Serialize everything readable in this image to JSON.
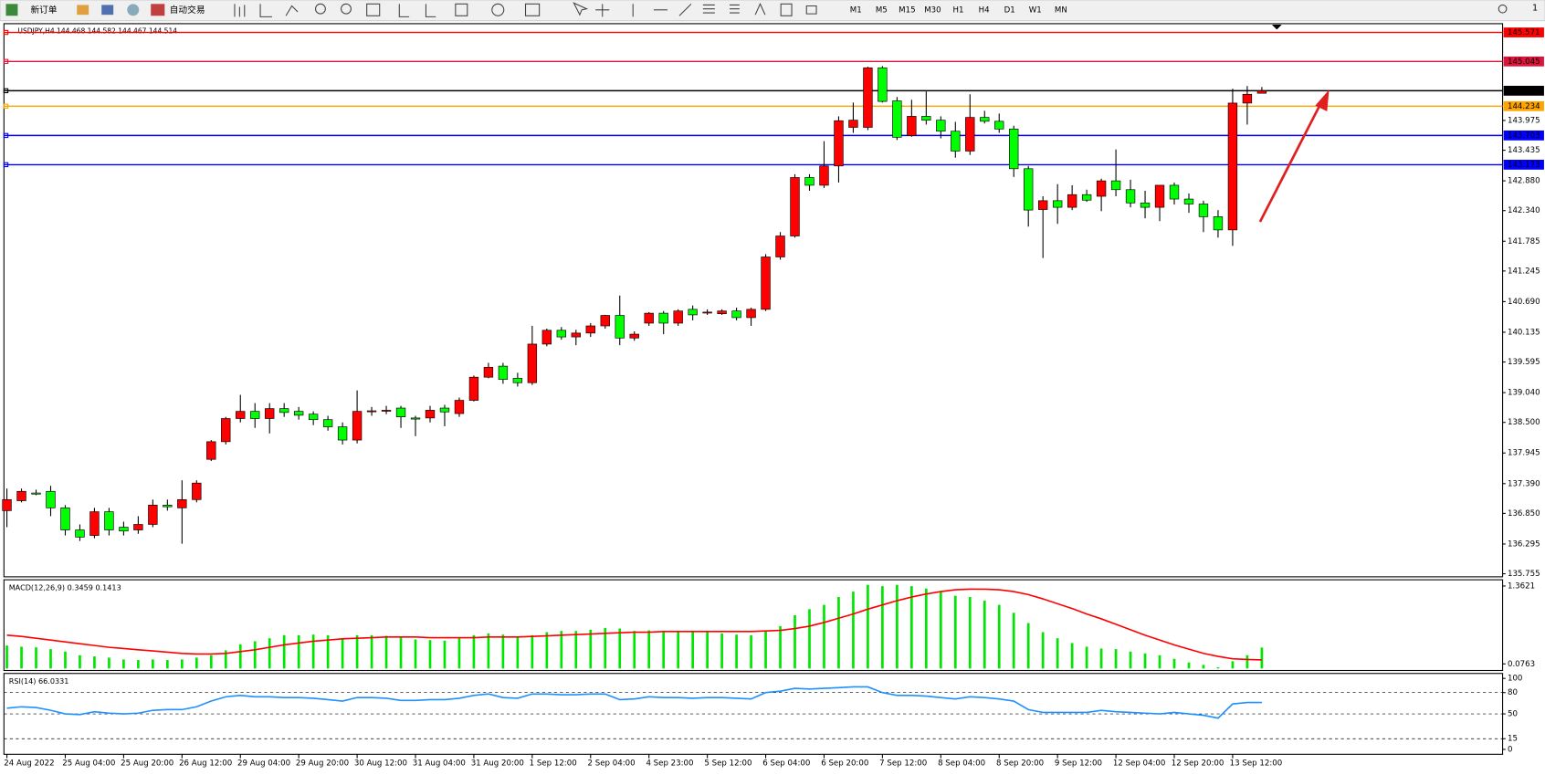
{
  "toolbar": {
    "new_order": "新订单",
    "auto_trading": "自动交易",
    "timeframes": [
      "M1",
      "M5",
      "M15",
      "M30",
      "H1",
      "H4",
      "D1",
      "W1",
      "MN"
    ],
    "notification_count": "1"
  },
  "chart_data": [
    {
      "type": "candlestick",
      "title": "USDJPY,H4  144.468 144.582 144.467 144.514",
      "up_color": "#ff0000",
      "down_color": "#00ff00",
      "categories": [
        "24 Aug 2022",
        null,
        null,
        null,
        "25 Aug 04:00",
        null,
        null,
        null,
        "25 Aug 20:00",
        null,
        null,
        null,
        "26 Aug 12:00",
        null,
        null,
        null,
        "29 Aug 04:00",
        null,
        null,
        null,
        "29 Aug 20:00",
        null,
        null,
        null,
        "30 Aug 12:00",
        null,
        null,
        null,
        "31 Aug 04:00",
        null,
        null,
        null,
        "31 Aug 20:00",
        null,
        null,
        null,
        "1 Sep 12:00",
        null,
        null,
        null,
        "2 Sep 04:00",
        null,
        null,
        null,
        "4 Sep 23:00",
        null,
        null,
        null,
        "5 Sep 12:00",
        null,
        null,
        null,
        "6 Sep 04:00",
        null,
        null,
        null,
        "6 Sep 20:00",
        null,
        null,
        null,
        "7 Sep 12:00",
        null,
        null,
        null,
        "8 Sep 04:00",
        null,
        null,
        null,
        "8 Sep 20:00",
        null,
        null,
        null,
        "9 Sep 12:00",
        null,
        null,
        null,
        "12 Sep 04:00",
        null,
        null,
        null,
        "12 Sep 20:00",
        null,
        null,
        null,
        "13 Sep 12:00",
        null,
        null
      ],
      "open": [
        136.9,
        137.08,
        137.22,
        137.25,
        136.95,
        136.55,
        136.45,
        136.88,
        136.6,
        136.55,
        136.65,
        137.0,
        136.95,
        137.1,
        137.83,
        138.15,
        138.57,
        138.7,
        138.57,
        138.75,
        138.7,
        138.65,
        138.55,
        138.42,
        138.18,
        138.7,
        138.71,
        138.76,
        138.58,
        138.58,
        138.76,
        138.66,
        138.9,
        139.32,
        139.52,
        139.3,
        139.22,
        139.92,
        140.17,
        140.05,
        140.12,
        140.25,
        140.44,
        140.03,
        140.3,
        140.48,
        140.3,
        140.55,
        140.5,
        140.47,
        140.52,
        140.4,
        140.55,
        141.5,
        141.88,
        142.94,
        142.8,
        143.15,
        143.85,
        143.85,
        144.93,
        144.33,
        143.7,
        144.05,
        143.98,
        143.78,
        143.42,
        144.03,
        143.96,
        143.82,
        143.1,
        142.36,
        142.52,
        142.4,
        142.63,
        142.6,
        142.88,
        142.72,
        142.48,
        142.4,
        142.8,
        142.55,
        142.46,
        142.23,
        141.99,
        144.29,
        144.468
      ],
      "high": [
        137.3,
        137.3,
        137.28,
        137.35,
        137.0,
        136.65,
        136.95,
        136.95,
        136.7,
        136.8,
        137.1,
        137.1,
        137.45,
        137.45,
        138.18,
        138.6,
        139.0,
        138.85,
        138.85,
        138.85,
        138.78,
        138.7,
        138.62,
        138.5,
        139.08,
        138.78,
        138.8,
        138.8,
        138.62,
        138.8,
        138.82,
        138.95,
        139.35,
        139.58,
        139.58,
        139.4,
        140.25,
        140.2,
        140.23,
        140.18,
        140.3,
        140.45,
        140.8,
        140.15,
        140.5,
        140.52,
        140.55,
        140.62,
        140.55,
        140.55,
        140.58,
        140.58,
        141.55,
        141.95,
        143.0,
        143.0,
        143.6,
        144.05,
        144.3,
        144.95,
        144.96,
        144.4,
        144.35,
        144.5,
        144.05,
        143.95,
        144.45,
        144.15,
        144.1,
        143.88,
        143.15,
        142.6,
        142.82,
        142.8,
        142.72,
        142.92,
        143.45,
        142.9,
        142.7,
        142.8,
        142.85,
        142.65,
        142.52,
        142.35,
        144.55,
        144.6,
        144.582
      ],
      "low": [
        136.6,
        137.05,
        137.18,
        136.8,
        136.45,
        136.35,
        136.4,
        136.45,
        136.45,
        136.48,
        136.6,
        136.9,
        136.3,
        137.05,
        137.8,
        138.1,
        138.5,
        138.4,
        138.3,
        138.6,
        138.55,
        138.45,
        138.35,
        138.1,
        138.12,
        138.62,
        138.65,
        138.4,
        138.25,
        138.5,
        138.43,
        138.6,
        138.88,
        139.3,
        139.2,
        139.15,
        139.18,
        139.88,
        140.0,
        139.9,
        140.05,
        140.2,
        139.9,
        139.98,
        140.25,
        140.1,
        140.25,
        140.35,
        140.45,
        140.45,
        140.35,
        140.25,
        140.52,
        141.45,
        141.85,
        142.7,
        142.75,
        142.85,
        143.75,
        143.8,
        144.3,
        143.62,
        143.68,
        143.9,
        143.65,
        143.3,
        143.35,
        143.92,
        143.75,
        142.95,
        142.05,
        141.48,
        142.1,
        142.35,
        142.5,
        142.33,
        142.6,
        142.4,
        142.2,
        142.15,
        142.45,
        142.3,
        141.95,
        141.85,
        141.7,
        143.9,
        144.467
      ],
      "close": [
        137.1,
        137.25,
        137.2,
        136.95,
        136.55,
        136.42,
        136.88,
        136.55,
        136.53,
        136.65,
        137.0,
        136.97,
        137.1,
        137.4,
        138.15,
        138.57,
        138.7,
        138.57,
        138.75,
        138.68,
        138.63,
        138.55,
        138.42,
        138.18,
        138.7,
        138.71,
        138.72,
        138.6,
        138.56,
        138.72,
        138.69,
        138.9,
        139.32,
        139.5,
        139.28,
        139.22,
        139.92,
        140.17,
        140.05,
        140.12,
        140.25,
        140.44,
        140.03,
        140.1,
        140.48,
        140.3,
        140.52,
        140.45,
        140.5,
        140.52,
        140.4,
        140.55,
        141.5,
        141.88,
        142.94,
        142.8,
        143.15,
        143.97,
        143.98,
        144.93,
        144.32,
        143.67,
        144.05,
        143.98,
        143.78,
        143.42,
        144.03,
        143.96,
        143.82,
        143.1,
        142.35,
        142.52,
        142.4,
        142.63,
        142.53,
        142.88,
        142.72,
        142.48,
        142.4,
        142.8,
        142.55,
        142.46,
        142.23,
        141.99,
        144.29,
        144.45,
        144.514
      ],
      "ylim": [
        135.7,
        145.73
      ],
      "yticks": [
        143.975,
        143.435,
        {
          "value": 142.88,
          "label": "142.880"
        },
        {
          "value": 142.34,
          "label": "142.340"
        },
        141.785,
        141.245,
        {
          "value": 140.69,
          "label": "140.690"
        },
        140.135,
        139.595,
        {
          "value": 139.04,
          "label": "139.040"
        },
        {
          "value": 138.5,
          "label": "138.500"
        },
        137.945,
        {
          "value": 137.39,
          "label": "137.390"
        },
        {
          "value": 136.85,
          "label": "136.850"
        },
        136.295,
        135.755
      ],
      "levels": [
        {
          "value": 145.571,
          "color": "#ff0000"
        },
        {
          "value": 145.045,
          "color": "#dc143c"
        },
        {
          "value": 144.514,
          "color": "#000000"
        },
        {
          "value": 144.234,
          "color": "#ffa500"
        },
        {
          "value": 143.703,
          "color": "#0000ff"
        },
        {
          "value": 143.173,
          "color": "#0000ff"
        }
      ]
    },
    {
      "type": "macd",
      "title": "MACD(12,26,9) 0.3459 0.1413",
      "ylim": [
        0,
        1.4
      ],
      "yticks": [
        1.3621,
        0.0763
      ],
      "series": [
        {
          "style": "bar",
          "color": "#00e600",
          "values": [
            0.38,
            0.36,
            0.35,
            0.32,
            0.28,
            0.22,
            0.2,
            0.18,
            0.15,
            0.14,
            0.15,
            0.14,
            0.15,
            0.18,
            0.22,
            0.3,
            0.4,
            0.45,
            0.5,
            0.55,
            0.55,
            0.56,
            0.55,
            0.5,
            0.55,
            0.55,
            0.54,
            0.52,
            0.48,
            0.47,
            0.46,
            0.5,
            0.55,
            0.58,
            0.56,
            0.52,
            0.55,
            0.6,
            0.62,
            0.62,
            0.64,
            0.67,
            0.66,
            0.62,
            0.63,
            0.62,
            0.62,
            0.62,
            0.6,
            0.58,
            0.56,
            0.55,
            0.62,
            0.7,
            0.88,
            0.98,
            1.05,
            1.18,
            1.27,
            1.38,
            1.36,
            1.38,
            1.36,
            1.32,
            1.28,
            1.2,
            1.18,
            1.12,
            1.05,
            0.92,
            0.75,
            0.6,
            0.5,
            0.42,
            0.36,
            0.33,
            0.32,
            0.28,
            0.25,
            0.22,
            0.16,
            0.1,
            0.06,
            0.02,
            0.12,
            0.22,
            0.3459
          ]
        },
        {
          "style": "line",
          "color": "#ff0000",
          "values": [
            0.55,
            0.53,
            0.5,
            0.47,
            0.44,
            0.41,
            0.38,
            0.35,
            0.33,
            0.31,
            0.29,
            0.27,
            0.25,
            0.24,
            0.24,
            0.25,
            0.28,
            0.31,
            0.35,
            0.39,
            0.42,
            0.45,
            0.47,
            0.49,
            0.5,
            0.51,
            0.52,
            0.52,
            0.52,
            0.51,
            0.51,
            0.51,
            0.51,
            0.52,
            0.52,
            0.52,
            0.53,
            0.54,
            0.55,
            0.56,
            0.57,
            0.58,
            0.59,
            0.6,
            0.6,
            0.61,
            0.61,
            0.61,
            0.61,
            0.61,
            0.61,
            0.61,
            0.62,
            0.63,
            0.66,
            0.7,
            0.76,
            0.83,
            0.9,
            0.98,
            1.05,
            1.12,
            1.18,
            1.23,
            1.27,
            1.3,
            1.31,
            1.31,
            1.3,
            1.27,
            1.22,
            1.15,
            1.07,
            0.99,
            0.9,
            0.82,
            0.73,
            0.64,
            0.55,
            0.47,
            0.39,
            0.32,
            0.25,
            0.2,
            0.16,
            0.15,
            0.1413
          ]
        }
      ]
    },
    {
      "type": "rsi",
      "title": "RSI(14) 66.0331",
      "ylim": [
        0,
        100
      ],
      "yticks": [
        100,
        80,
        50,
        15,
        0
      ],
      "series": [
        {
          "style": "line",
          "color": "#1e90ff",
          "values": [
            58,
            60,
            59,
            55,
            50,
            49,
            53,
            51,
            50,
            51,
            55,
            56,
            56,
            60,
            68,
            74,
            76,
            74,
            74,
            73,
            73,
            72,
            70,
            68,
            73,
            73,
            72,
            69,
            69,
            70,
            70,
            72,
            76,
            78,
            73,
            72,
            78,
            78,
            77,
            77,
            78,
            78,
            70,
            71,
            74,
            73,
            73,
            72,
            73,
            73,
            72,
            71,
            80,
            82,
            86,
            85,
            86,
            87,
            88,
            88,
            80,
            76,
            76,
            75,
            73,
            71,
            74,
            73,
            71,
            68,
            56,
            52,
            52,
            52,
            52,
            55,
            53,
            52,
            51,
            50,
            52,
            50,
            48,
            44,
            64,
            66,
            66.0331
          ]
        }
      ]
    }
  ]
}
